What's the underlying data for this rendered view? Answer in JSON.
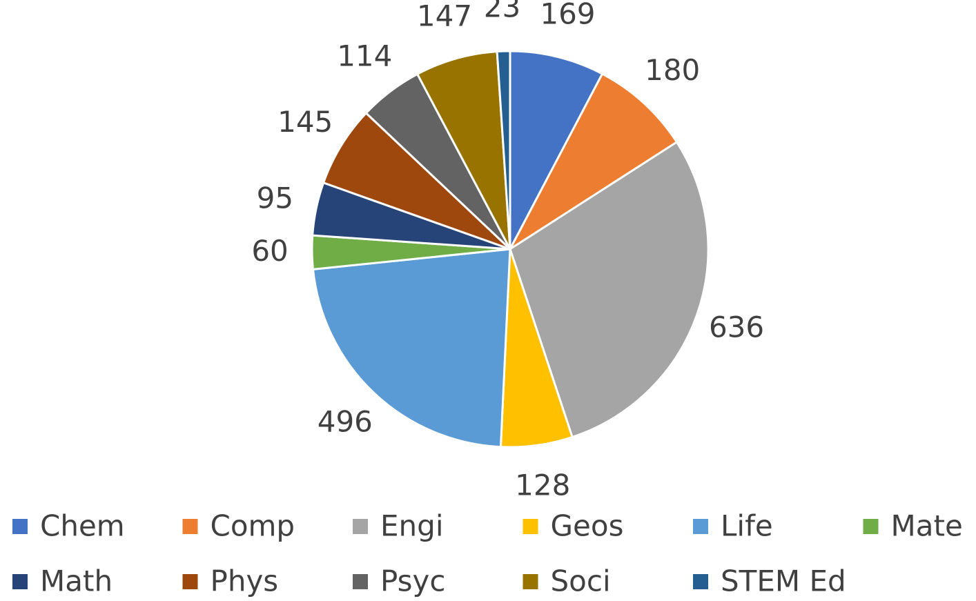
{
  "chart_data": {
    "type": "pie",
    "categories": [
      "Chem",
      "Comp",
      "Engi",
      "Geos",
      "Life",
      "Mate",
      "Math",
      "Phys",
      "Psyc",
      "Soci",
      "STEM Ed"
    ],
    "values": [
      169,
      180,
      636,
      128,
      496,
      60,
      95,
      145,
      114,
      147,
      23
    ],
    "colors": [
      "#4472c4",
      "#ed7d31",
      "#a5a5a5",
      "#ffc000",
      "#5b9bd5",
      "#70ad47",
      "#264478",
      "#9e480e",
      "#636363",
      "#997300",
      "#255e91"
    ],
    "legend": "bottom"
  }
}
